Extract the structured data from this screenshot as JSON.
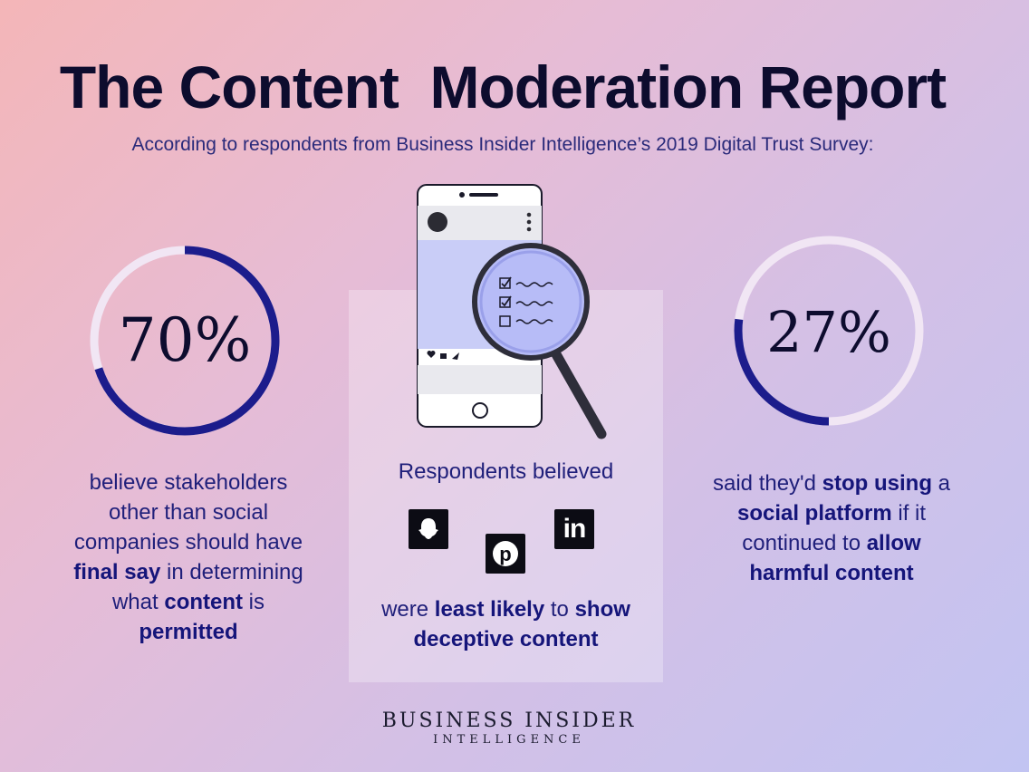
{
  "header": {
    "title": "The Content  Moderation Report",
    "subtitle": "According to respondents from Business Insider Intelligence’s 2019 Digital Trust Survey:"
  },
  "left": {
    "percent": "70%",
    "progress_fraction": 0.7,
    "lines": [
      {
        "parts": [
          {
            "t": "believe stakeholders",
            "b": false
          }
        ]
      },
      {
        "parts": [
          {
            "t": "other than social",
            "b": false
          }
        ]
      },
      {
        "parts": [
          {
            "t": "companies should have",
            "b": false
          }
        ]
      },
      {
        "parts": [
          {
            "t": "final say",
            "b": true
          },
          {
            "t": " in determining",
            "b": false
          }
        ]
      },
      {
        "parts": [
          {
            "t": "what ",
            "b": false
          },
          {
            "t": "content",
            "b": true
          },
          {
            "t": " is",
            "b": false
          }
        ]
      },
      {
        "parts": [
          {
            "t": "permitted",
            "b": true
          }
        ]
      }
    ]
  },
  "middle": {
    "heading": "Respondents believed",
    "lines": [
      {
        "parts": [
          {
            "t": "were ",
            "b": false
          },
          {
            "t": "least likely",
            "b": true
          },
          {
            "t": " to ",
            "b": false
          },
          {
            "t": "show",
            "b": true
          }
        ]
      },
      {
        "parts": [
          {
            "t": "deceptive content",
            "b": true
          }
        ]
      }
    ],
    "logos": [
      "snapchat-logo",
      "pinterest-logo",
      "linkedin-logo"
    ],
    "linkedin_text": "in",
    "pinterest_text": "p"
  },
  "right": {
    "percent": "27%",
    "progress_fraction": 0.27,
    "lines": [
      {
        "parts": [
          {
            "t": "said they'd ",
            "b": false
          },
          {
            "t": "stop using",
            "b": true
          },
          {
            "t": " a",
            "b": false
          }
        ]
      },
      {
        "parts": [
          {
            "t": "social platform",
            "b": true
          },
          {
            "t": " if it",
            "b": false
          }
        ]
      },
      {
        "parts": [
          {
            "t": "continued to ",
            "b": false
          },
          {
            "t": "allow",
            "b": true
          }
        ]
      },
      {
        "parts": [
          {
            "t": "harmful content",
            "b": true
          }
        ]
      }
    ]
  },
  "footer": {
    "brand": "BUSINESS INSIDER",
    "brand_sub": "INTELLIGENCE"
  },
  "colors": {
    "ring_fill": "#1c1c8c",
    "ring_track": "#f1e6f4",
    "title": "#0d0c2e",
    "text": "#1f1f7a"
  }
}
